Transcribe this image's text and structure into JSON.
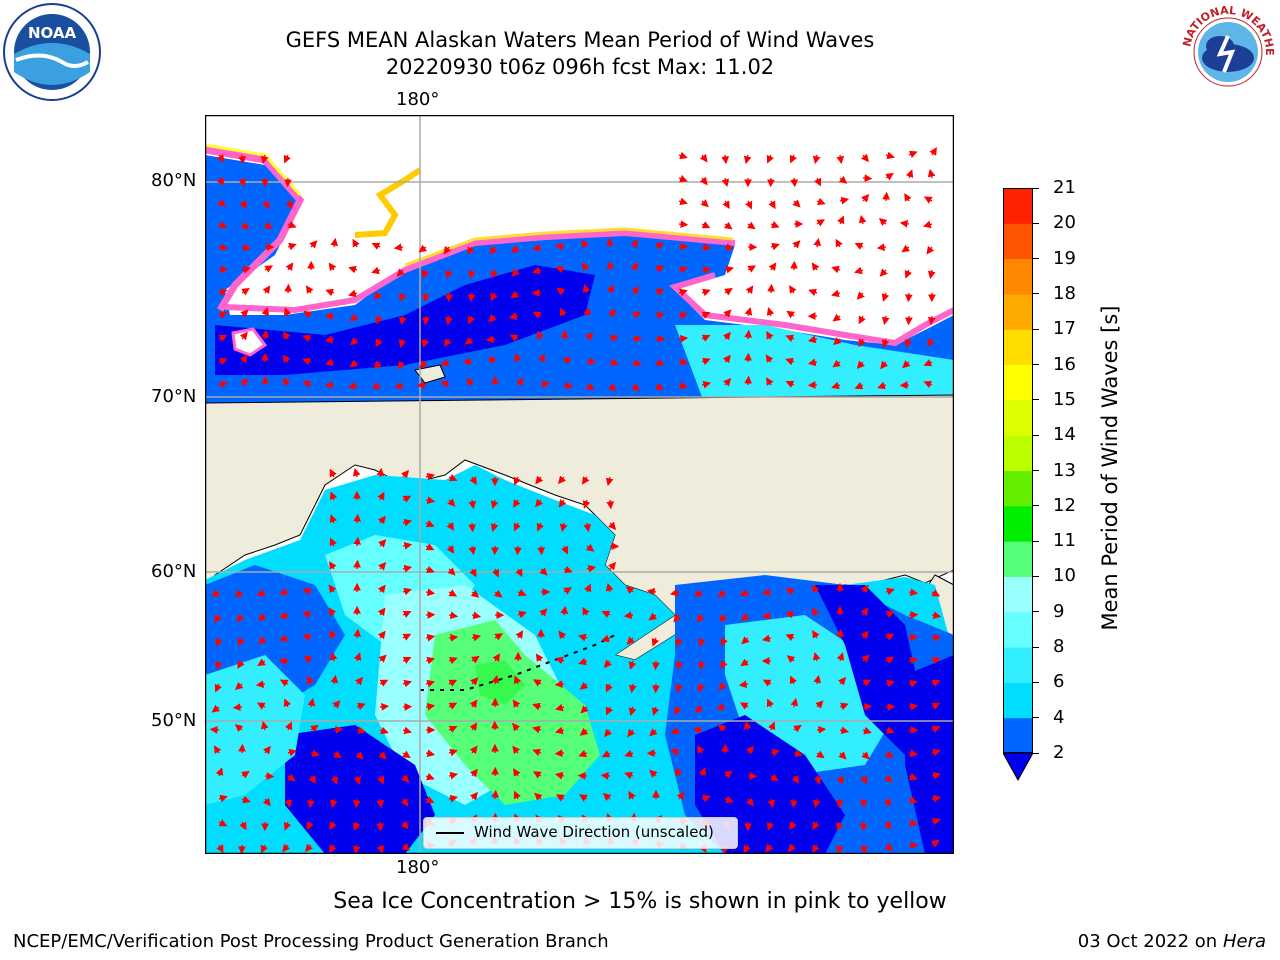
{
  "title": {
    "line1": "GEFS MEAN Alaskan Waters Mean Period of Wind Waves",
    "line2": "20220930 t06z 096h fcst   Max: 11.02"
  },
  "map": {
    "lat_labels": [
      "80°N",
      "70°N",
      "60°N",
      "50°N"
    ],
    "lon_label_top": "180°",
    "lon_label_bottom": "180°",
    "legend_label": "Wind Wave Direction (unscaled)",
    "arrow_color": "#ff0000",
    "land_color": "#efecdc"
  },
  "colorbar": {
    "label": "Mean Period of Wind Waves [s]",
    "ticks": [
      "2",
      "4",
      "6",
      "8",
      "9",
      "10",
      "11",
      "12",
      "13",
      "14",
      "15",
      "16",
      "17",
      "18",
      "19",
      "20",
      "21"
    ],
    "colors": [
      "#0066ff",
      "#00ddff",
      "#33eeff",
      "#66ffff",
      "#99ffff",
      "#55ff77",
      "#00ee00",
      "#66ee00",
      "#bbff00",
      "#ddff00",
      "#ffff00",
      "#ffdd00",
      "#ffaa00",
      "#ff8800",
      "#ff5500",
      "#ff2200"
    ],
    "under_color": "#0000ee"
  },
  "caption": "Sea Ice Concentration > 15% is shown in pink to yellow",
  "footer": {
    "left": "NCEP/EMC/Verification Post Processing Product Generation Branch",
    "right_date": "03 Oct 2022 on ",
    "right_host": "Hera"
  },
  "logos": {
    "noaa_text": "NOAA",
    "nws_text": "NATIONAL WEATHER SERVICE"
  }
}
